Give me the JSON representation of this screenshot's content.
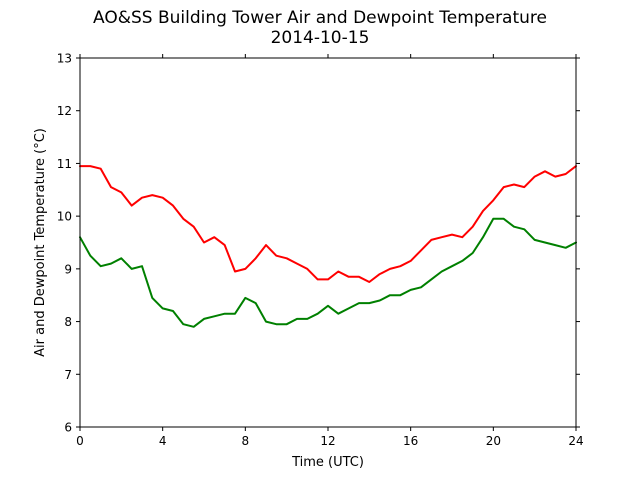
{
  "chart_data": {
    "type": "line",
    "title": "AO&SS Building Tower Air and Dewpoint Temperature",
    "subtitle": "2014-10-15",
    "xlabel": "Time (UTC)",
    "ylabel": "Air and Dewpoint Temperature (°C)",
    "xlim": [
      0,
      24
    ],
    "ylim": [
      6,
      13
    ],
    "x_ticks": [
      0,
      4,
      8,
      12,
      16,
      20,
      24
    ],
    "y_ticks": [
      6,
      7,
      8,
      9,
      10,
      11,
      12,
      13
    ],
    "grid": false,
    "legend": "none",
    "series": [
      {
        "color": "#ff0000",
        "x": [
          0,
          0.5,
          1,
          1.5,
          2,
          2.5,
          3,
          3.5,
          4,
          4.5,
          5,
          5.5,
          6,
          6.5,
          7,
          7.5,
          8,
          8.5,
          9,
          9.5,
          10,
          10.5,
          11,
          11.5,
          12,
          12.5,
          13,
          13.5,
          14,
          14.5,
          15,
          15.5,
          16,
          16.5,
          17,
          17.5,
          18,
          18.5,
          19,
          19.5,
          20,
          20.5,
          21,
          21.5,
          22,
          22.5,
          23,
          23.5,
          24
        ],
        "values": [
          10.95,
          10.95,
          10.9,
          10.55,
          10.45,
          10.2,
          10.35,
          10.4,
          10.35,
          10.2,
          9.95,
          9.8,
          9.5,
          9.6,
          9.45,
          8.95,
          9.0,
          9.2,
          9.45,
          9.25,
          9.2,
          9.1,
          9.0,
          8.8,
          8.8,
          8.95,
          8.85,
          8.85,
          8.75,
          8.9,
          9.0,
          9.05,
          9.15,
          9.35,
          9.55,
          9.6,
          9.65,
          9.6,
          9.8,
          10.1,
          10.3,
          10.55,
          10.6,
          10.55,
          10.75,
          10.85,
          10.75,
          10.8,
          10.95
        ]
      },
      {
        "color": "#008000",
        "x": [
          0,
          0.5,
          1,
          1.5,
          2,
          2.5,
          3,
          3.5,
          4,
          4.5,
          5,
          5.5,
          6,
          6.5,
          7,
          7.5,
          8,
          8.5,
          9,
          9.5,
          10,
          10.5,
          11,
          11.5,
          12,
          12.5,
          13,
          13.5,
          14,
          14.5,
          15,
          15.5,
          16,
          16.5,
          17,
          17.5,
          18,
          18.5,
          19,
          19.5,
          20,
          20.5,
          21,
          21.5,
          22,
          22.5,
          23,
          23.5,
          24
        ],
        "values": [
          9.6,
          9.25,
          9.05,
          9.1,
          9.2,
          9.0,
          9.05,
          8.45,
          8.25,
          8.2,
          7.95,
          7.9,
          8.05,
          8.1,
          8.15,
          8.15,
          8.45,
          8.35,
          8.0,
          7.95,
          7.95,
          8.05,
          8.05,
          8.15,
          8.3,
          8.15,
          8.25,
          8.35,
          8.35,
          8.4,
          8.5,
          8.5,
          8.6,
          8.65,
          8.8,
          8.95,
          9.05,
          9.15,
          9.3,
          9.6,
          9.95,
          9.95,
          9.8,
          9.75,
          9.55,
          9.5,
          9.45,
          9.4,
          9.5
        ]
      }
    ]
  }
}
